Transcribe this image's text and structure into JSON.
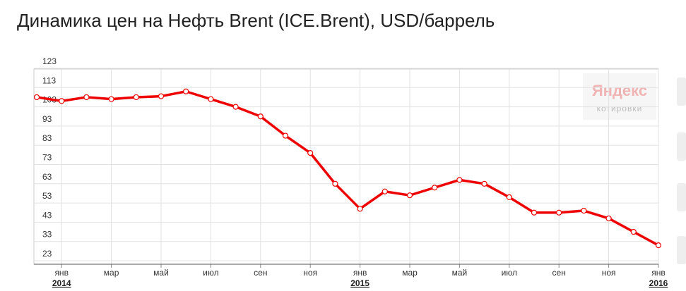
{
  "chart_data": {
    "type": "line",
    "title": "Динамика цен на Нефть Brent (ICE.Brent), USD/баррель",
    "watermark": [
      "Яндекс",
      "котировки"
    ],
    "categories": [
      null,
      "янв",
      null,
      "мар",
      null,
      "май",
      null,
      "июл",
      null,
      "сен",
      null,
      "ноя",
      null,
      "янв",
      null,
      "мар",
      null,
      "май",
      null,
      "июл",
      null,
      "сен",
      null,
      "ноя",
      null,
      "янв"
    ],
    "years": [
      "2014",
      "2015",
      "2016"
    ],
    "series": [
      {
        "name": "Brent",
        "color": "#ee0000",
        "values": [
          108,
          106,
          108,
          107,
          108,
          108.5,
          111,
          107,
          103,
          98,
          88,
          79,
          63,
          50,
          59,
          57,
          61,
          65,
          63,
          56,
          48,
          48,
          49,
          45,
          38,
          31
        ]
      }
    ],
    "ylim": [
      23,
      123
    ],
    "yticks": [
      23,
      33,
      43,
      53,
      63,
      73,
      83,
      93,
      103,
      113,
      123
    ],
    "grid": true
  }
}
